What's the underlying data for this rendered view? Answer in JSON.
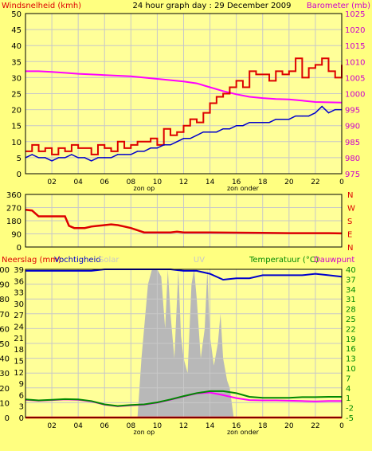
{
  "header": {
    "title": "24 hour graph day : 29 December 2009"
  },
  "colors": {
    "background": "#FFFF80",
    "plot": "#FFFF99",
    "grid": "#C8C8C8",
    "frame": "#000000",
    "wind": "#DD0000",
    "gust": "#0000CC",
    "barometer": "#FF00FF",
    "humidity": "#0000CC",
    "temperature": "#008800",
    "dewpoint": "#FF00FF",
    "rain": "#FF0000",
    "uv": "#B8B8B8",
    "solar": "#C8C8C8"
  },
  "chart_data": [
    {
      "type": "line",
      "title": "24 hour graph day : 29 December 2009",
      "left_label": "Windsnelheid (kmh)",
      "right_label": "Barometer (mb)",
      "x_ticks": [
        "02",
        "04",
        "06",
        "08",
        "10",
        "12",
        "14",
        "16",
        "18",
        "20",
        "22",
        "0"
      ],
      "y_left_ticks": [
        "0",
        "5",
        "10",
        "15",
        "20",
        "25",
        "30",
        "35",
        "40",
        "45",
        "50"
      ],
      "y_right_ticks": [
        "975",
        "980",
        "985",
        "990",
        "995",
        "1000",
        "1005",
        "1010",
        "1015",
        "1020",
        "1025"
      ],
      "ylim_left": [
        0,
        50
      ],
      "ylim_right": [
        975,
        1025
      ],
      "xlim": [
        0,
        24
      ],
      "x_annotations": [
        {
          "x": 9,
          "label": "zon op"
        },
        {
          "x": 16.5,
          "label": "zon onder"
        }
      ],
      "series": [
        {
          "key": "gust",
          "axis": "left",
          "x": [
            0,
            0.5,
            1,
            1.5,
            2,
            2.5,
            3,
            3.5,
            4,
            4.5,
            5,
            5.5,
            6,
            6.5,
            7,
            7.5,
            8,
            8.5,
            9,
            9.5,
            10,
            10.5,
            11,
            11.5,
            12,
            12.5,
            13,
            13.5,
            14,
            14.5,
            15,
            15.5,
            16,
            16.5,
            17,
            17.5,
            18,
            18.5,
            19,
            19.5,
            20,
            20.5,
            21,
            21.5,
            22,
            22.5,
            23,
            23.5,
            24
          ],
          "values": [
            7,
            9,
            7,
            8,
            6,
            8,
            7,
            9,
            8,
            8,
            6,
            9,
            8,
            7,
            10,
            8,
            9,
            10,
            10,
            11,
            9,
            14,
            12,
            13,
            15,
            17,
            16,
            19,
            22,
            24,
            25,
            27,
            29,
            27,
            32,
            31,
            31,
            29,
            32,
            31,
            32,
            36,
            30,
            33,
            34,
            36,
            32,
            30,
            34
          ]
        },
        {
          "key": "wind",
          "axis": "left",
          "x": [
            0,
            0.5,
            1,
            1.5,
            2,
            2.5,
            3,
            3.5,
            4,
            4.5,
            5,
            5.5,
            6,
            6.5,
            7,
            7.5,
            8,
            8.5,
            9,
            9.5,
            10,
            10.5,
            11,
            11.5,
            12,
            12.5,
            13,
            13.5,
            14,
            14.5,
            15,
            15.5,
            16,
            16.5,
            17,
            17.5,
            18,
            18.5,
            19,
            19.5,
            20,
            20.5,
            21,
            21.5,
            22,
            22.5,
            23,
            23.5,
            24
          ],
          "values": [
            5,
            6,
            5,
            5,
            4,
            5,
            5,
            6,
            5,
            5,
            4,
            5,
            5,
            5,
            6,
            6,
            6,
            7,
            7,
            8,
            8,
            9,
            9,
            10,
            11,
            11,
            12,
            13,
            13,
            13,
            14,
            14,
            15,
            15,
            16,
            16,
            16,
            16,
            17,
            17,
            17,
            18,
            18,
            18,
            19,
            21,
            19,
            20,
            20
          ]
        },
        {
          "key": "barometer",
          "axis": "right",
          "x": [
            0,
            1,
            2,
            3,
            4,
            5,
            6,
            7,
            8,
            9,
            10,
            11,
            12,
            13,
            14,
            15,
            16,
            17,
            18,
            19,
            20,
            21,
            22,
            23,
            24
          ],
          "values": [
            1007,
            1007,
            1006.8,
            1006.5,
            1006.2,
            1006,
            1005.8,
            1005.6,
            1005.4,
            1005,
            1004.6,
            1004.2,
            1003.8,
            1003.2,
            1002,
            1000.8,
            999.8,
            999,
            998.6,
            998.3,
            998.2,
            997.8,
            997.4,
            997.3,
            997.2
          ]
        }
      ]
    },
    {
      "type": "line",
      "title": "",
      "y_left_ticks": [
        "0",
        "90",
        "180",
        "270",
        "360"
      ],
      "y_right_ticks": [
        "N",
        "E",
        "S",
        "W",
        "N"
      ],
      "ylim": [
        0,
        360
      ],
      "xlim": [
        0,
        24
      ],
      "x_ticks": [],
      "series": [
        {
          "key": "direction",
          "x": [
            0,
            0.5,
            1,
            2,
            3,
            3.3,
            3.7,
            4.5,
            5,
            5.5,
            6,
            6.5,
            7,
            7.5,
            8,
            8.5,
            9,
            10,
            11,
            11.5,
            12,
            13,
            14,
            16,
            18,
            20,
            22,
            23,
            24
          ],
          "values": [
            255,
            250,
            210,
            210,
            210,
            145,
            130,
            130,
            140,
            145,
            150,
            155,
            150,
            140,
            130,
            115,
            100,
            100,
            100,
            105,
            100,
            100,
            100,
            98,
            97,
            95,
            95,
            95,
            93
          ]
        }
      ]
    },
    {
      "type": "line",
      "title": "",
      "left_labels": [
        "Neerslag (mm)",
        "Vochtigheid",
        "Solar"
      ],
      "center_label": "UV",
      "right_labels": [
        "Temperatuur (°C)",
        "Dauwpunt"
      ],
      "x_ticks": [
        "02",
        "04",
        "06",
        "08",
        "10",
        "12",
        "14",
        "16",
        "18",
        "20",
        "22",
        "0"
      ],
      "y_left_ticks": [
        "0",
        "10",
        "20",
        "30",
        "40",
        "50",
        "60",
        "70",
        "80",
        "90",
        "100"
      ],
      "y_left_ticks_alt": [
        "0",
        "3",
        "6",
        "9",
        "12",
        "15",
        "18",
        "21",
        "24",
        "27",
        "30",
        "33",
        "36",
        "39"
      ],
      "y_right_ticks": [
        "-5",
        "-2",
        "1",
        "4",
        "7",
        "10",
        "13",
        "16",
        "19",
        "22",
        "25",
        "28",
        "31",
        "34",
        "37",
        "40"
      ],
      "ylim_left": [
        0,
        100
      ],
      "ylim_right": [
        -5,
        40
      ],
      "xlim": [
        0,
        24
      ],
      "x_annotations": [
        {
          "x": 9,
          "label": "zon op"
        },
        {
          "x": 16.5,
          "label": "zon onder"
        }
      ],
      "series": [
        {
          "key": "humidity",
          "axis": "left",
          "x": [
            0,
            1,
            2,
            3,
            4,
            5,
            6,
            7,
            8,
            9,
            10,
            11,
            12,
            13,
            14,
            15,
            16,
            17,
            18,
            19,
            20,
            21,
            22,
            23,
            24
          ],
          "values": [
            99,
            99,
            99,
            99,
            99,
            99,
            100,
            100,
            100,
            100,
            100,
            100,
            99,
            99,
            97,
            93,
            94,
            94,
            96,
            96,
            96,
            96,
            97,
            96,
            95
          ]
        },
        {
          "key": "solar",
          "axis": "left",
          "x": [
            8.5,
            8.8,
            9,
            9.3,
            9.6,
            9.8,
            10,
            10.3,
            10.6,
            10.8,
            11,
            11.3,
            11.6,
            11.8,
            12,
            12.3,
            12.6,
            12.8,
            13,
            13.3,
            13.6,
            13.8,
            14,
            14.3,
            14.6,
            14.8,
            15,
            15.3,
            15.5,
            15.8
          ],
          "values": [
            0,
            40,
            60,
            90,
            100,
            100,
            100,
            95,
            60,
            100,
            70,
            40,
            100,
            55,
            40,
            30,
            90,
            100,
            80,
            40,
            60,
            100,
            55,
            35,
            50,
            70,
            40,
            25,
            20,
            0
          ]
        },
        {
          "key": "temperature",
          "axis": "right",
          "x": [
            0,
            1,
            2,
            3,
            4,
            5,
            6,
            7,
            8,
            9,
            10,
            11,
            12,
            13,
            14,
            15,
            16,
            17,
            18,
            19,
            20,
            21,
            22,
            23,
            24
          ],
          "values": [
            0.5,
            0.2,
            0.4,
            0.6,
            0.5,
            0.0,
            -1.0,
            -1.5,
            -1.2,
            -1.0,
            -0.4,
            0.5,
            1.5,
            2.4,
            3.0,
            3.0,
            2.4,
            1.3,
            1.0,
            1.0,
            1.0,
            1.2,
            1.2,
            1.3,
            1.3
          ]
        },
        {
          "key": "dewpoint",
          "axis": "right",
          "x": [
            0,
            1,
            2,
            3,
            4,
            5,
            6,
            7,
            8,
            9,
            10,
            11,
            12,
            13,
            14,
            15,
            16,
            17,
            18,
            19,
            20,
            21,
            22,
            23,
            24
          ],
          "values": [
            0.4,
            0.1,
            0.3,
            0.5,
            0.4,
            -0.1,
            -1.1,
            -1.6,
            -1.3,
            -1.1,
            -0.5,
            0.4,
            1.4,
            2.3,
            2.6,
            1.8,
            0.9,
            0.3,
            0.2,
            0.2,
            0.1,
            0.0,
            -0.1,
            0.0,
            0.0
          ]
        },
        {
          "key": "rain",
          "axis": "left",
          "x": [
            0,
            24
          ],
          "values": [
            0,
            0
          ]
        }
      ]
    }
  ]
}
